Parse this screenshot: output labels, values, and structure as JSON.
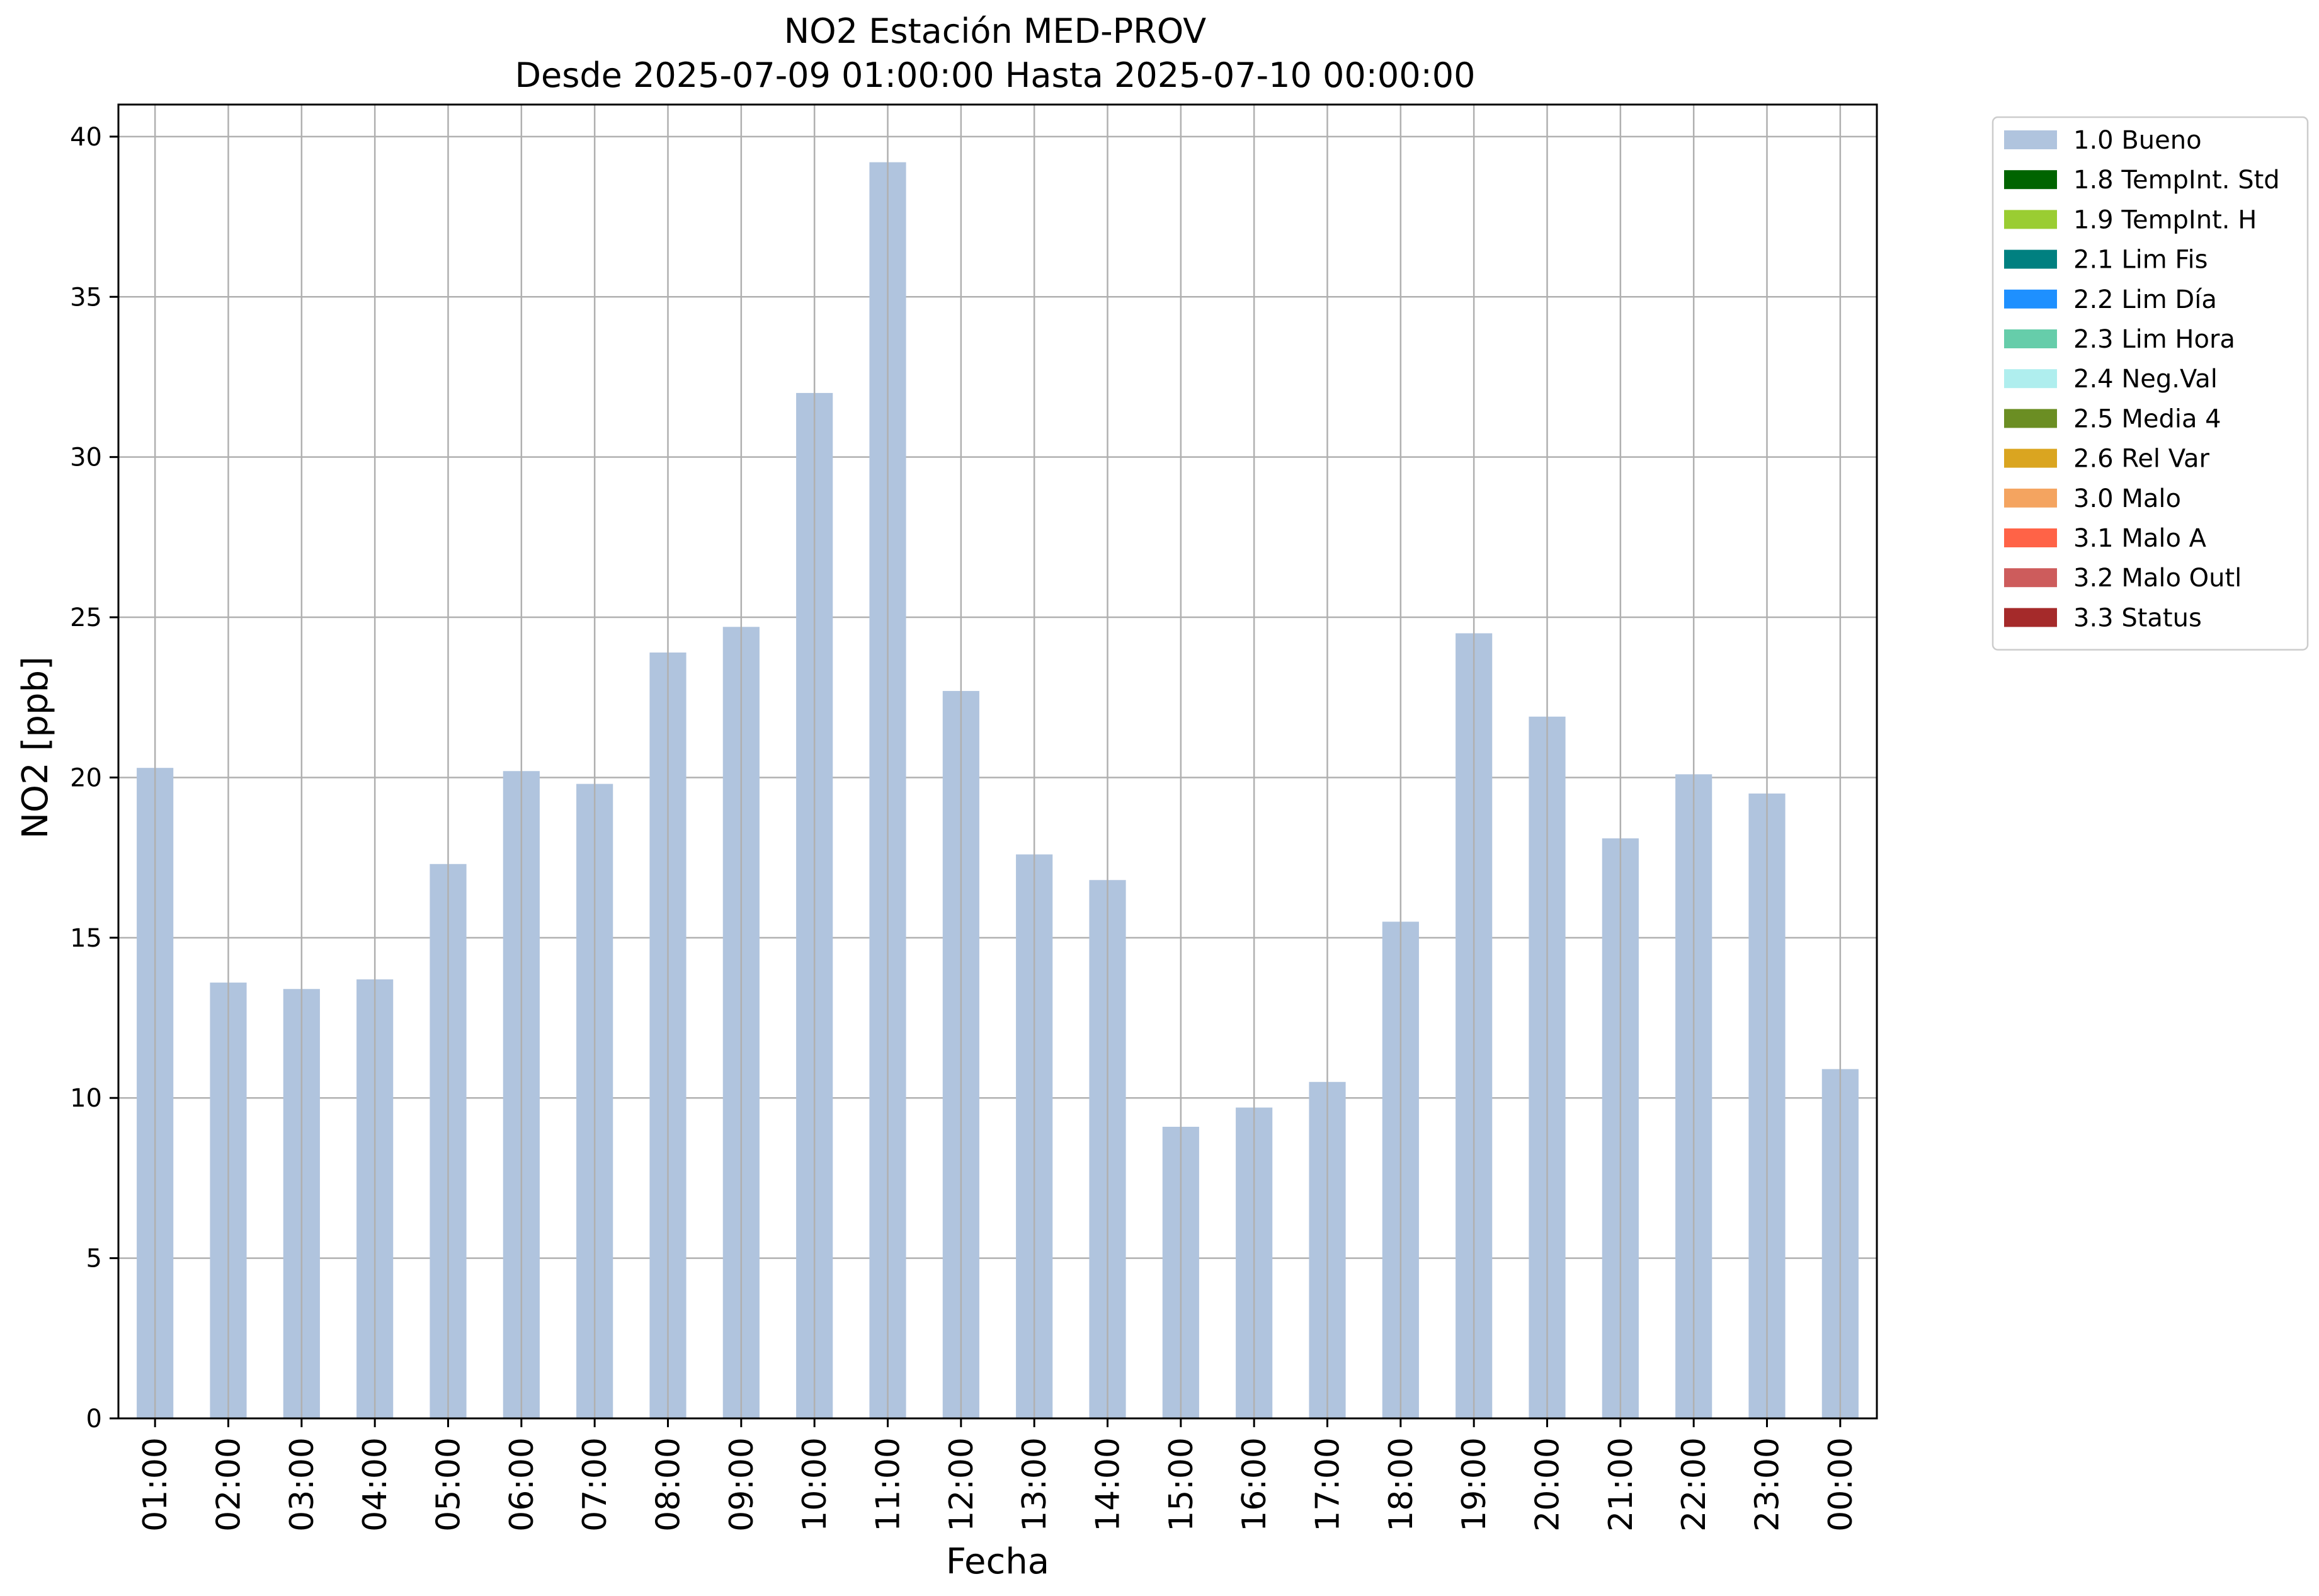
{
  "chart_data": {
    "type": "bar",
    "title": "NO2 Estación MED-PROV",
    "subtitle": "Desde 2025-07-09 01:00:00 Hasta 2025-07-10 00:00:00",
    "xlabel": "Fecha",
    "ylabel": "NO2 [ppb]",
    "ylim": [
      0,
      41
    ],
    "yticks": [
      0,
      5,
      10,
      15,
      20,
      25,
      30,
      35,
      40
    ],
    "grid": true,
    "legend_position": "outside-top-right",
    "categories": [
      "01:00",
      "02:00",
      "03:00",
      "04:00",
      "05:00",
      "06:00",
      "07:00",
      "08:00",
      "09:00",
      "10:00",
      "11:00",
      "12:00",
      "13:00",
      "14:00",
      "15:00",
      "16:00",
      "17:00",
      "18:00",
      "19:00",
      "20:00",
      "21:00",
      "22:00",
      "23:00",
      "00:00"
    ],
    "series": [
      {
        "name": "1.0 Bueno",
        "color": "#b0c4de",
        "values": [
          20.3,
          13.6,
          13.4,
          13.7,
          17.3,
          20.2,
          19.8,
          23.9,
          24.7,
          32.0,
          39.2,
          22.7,
          17.6,
          16.8,
          9.1,
          9.7,
          10.5,
          15.5,
          24.5,
          21.9,
          18.1,
          20.1,
          19.5,
          10.9
        ]
      }
    ],
    "legend": [
      {
        "label": "1.0 Bueno",
        "color": "#b0c4de"
      },
      {
        "label": "1.8 TempInt. Std",
        "color": "#006400"
      },
      {
        "label": "1.9 TempInt. H",
        "color": "#9acd32"
      },
      {
        "label": "2.1 Lim Fis",
        "color": "#008080"
      },
      {
        "label": "2.2 Lim Día",
        "color": "#1e90ff"
      },
      {
        "label": "2.3 Lim Hora",
        "color": "#66cdaa"
      },
      {
        "label": "2.4 Neg.Val",
        "color": "#afeeee"
      },
      {
        "label": "2.5 Media 4",
        "color": "#6b8e23"
      },
      {
        "label": "2.6 Rel Var",
        "color": "#daa520"
      },
      {
        "label": "3.0 Malo",
        "color": "#f4a460"
      },
      {
        "label": "3.1 Malo A",
        "color": "#ff6347"
      },
      {
        "label": "3.2 Malo Outl",
        "color": "#cd5c5c"
      },
      {
        "label": "3.3 Status",
        "color": "#a52a2a"
      }
    ]
  }
}
